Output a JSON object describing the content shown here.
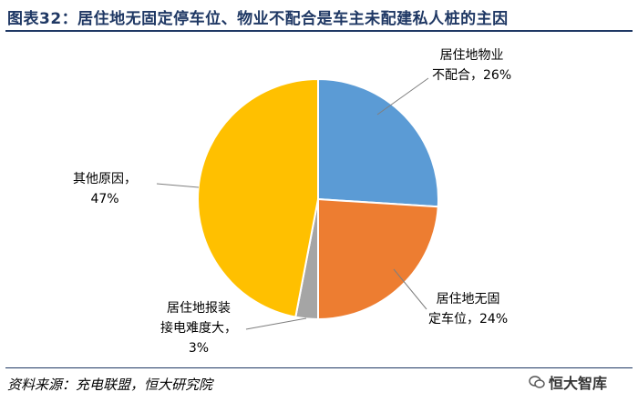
{
  "title": "图表32：居住地无固定停车位、物业不配合是车主未配建私人桩的主因",
  "source": "资料来源：充电联盟，恒大研究院",
  "watermark": "恒大智库",
  "chart_data": {
    "type": "pie",
    "slices": [
      {
        "label_line1": "居住地物业",
        "label_line2": "不配合，26%",
        "name": "居住地物业不配合",
        "value": 26,
        "color": "#5b9bd5"
      },
      {
        "label_line1": "居住地无固",
        "label_line2": "定车位，24%",
        "name": "居住地无固定车位",
        "value": 24,
        "color": "#ed7d31"
      },
      {
        "label_line1": "居住地报装",
        "label_line2": "接电难度大，",
        "label_line3": "3%",
        "name": "居住地报装接电难度大",
        "value": 3,
        "color": "#a5a5a5"
      },
      {
        "label_line1": "其他原因，",
        "label_line2": "47%",
        "name": "其他原因",
        "value": 47,
        "color": "#ffc000"
      }
    ]
  }
}
